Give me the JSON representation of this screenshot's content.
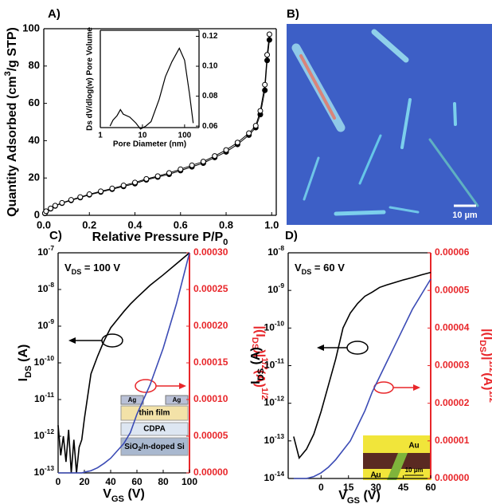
{
  "chart_data": [
    {
      "type": "line",
      "panel_label": "A)",
      "xlabel": [
        {
          "text": "Relative Pressure P/P"
        },
        {
          "sub": "0"
        }
      ],
      "ylabel": [
        {
          "text": "Quantity Adsorbed (cm"
        },
        {
          "sup": "3"
        },
        {
          "text": "/g STP)"
        }
      ],
      "x": [
        0.005,
        0.01,
        0.03,
        0.05,
        0.08,
        0.12,
        0.16,
        0.2,
        0.25,
        0.3,
        0.35,
        0.4,
        0.45,
        0.5,
        0.55,
        0.6,
        0.65,
        0.7,
        0.75,
        0.8,
        0.85,
        0.9,
        0.93,
        0.95,
        0.97,
        0.98,
        0.99
      ],
      "series": [
        {
          "color": "#000000",
          "marker": "filled",
          "values": [
            1,
            2,
            3.5,
            5,
            6.5,
            8,
            9.5,
            11,
            12.5,
            14,
            15.5,
            17,
            19,
            20.5,
            22,
            24,
            26,
            28,
            31,
            34,
            38,
            43,
            47,
            54,
            67,
            83,
            94
          ]
        },
        {
          "color": "#000000",
          "marker": "open",
          "values": [
            1.2,
            2.2,
            3.7,
            5.2,
            6.7,
            8.3,
            9.8,
            11.3,
            12.9,
            14.4,
            16,
            17.6,
            19.5,
            21,
            22.7,
            24.7,
            26.8,
            28.8,
            31.8,
            35,
            39,
            44,
            48,
            56,
            70,
            86,
            97
          ]
        }
      ],
      "xlim": [
        0,
        1.02
      ],
      "ylim": [
        0,
        100
      ],
      "xticks": [
        {
          "value": 0,
          "label": "0.0"
        },
        0.2,
        0.4,
        0.6,
        0.8,
        {
          "value": 1,
          "label": "1.0"
        }
      ],
      "yticks": [
        0,
        20,
        40,
        60,
        80,
        100
      ]
    },
    {
      "type": "line",
      "xscale": "log",
      "xlabel": "Pore Diameter (nm)",
      "ylabel": "Ds dV/dlog(w) Pore Volume",
      "x": [
        1.7,
        2,
        2.5,
        3,
        3.5,
        5,
        7,
        9,
        12,
        16,
        25,
        35,
        50,
        75,
        100,
        130,
        160
      ],
      "series": [
        {
          "color": "#000000",
          "values": [
            0.06,
            0.064,
            0.067,
            0.071,
            0.068,
            0.066,
            0.062,
            0.058,
            0.06,
            0.063,
            0.078,
            0.093,
            0.103,
            0.112,
            0.104,
            0.082,
            0.062
          ]
        }
      ],
      "xlim": [
        1,
        220
      ],
      "ylim": [
        0.059,
        0.124
      ],
      "xticks": [
        1,
        10,
        100
      ],
      "yticks": [
        0.06,
        0.08,
        {
          "value": 0.1,
          "label": "0.10"
        },
        0.12
      ]
    },
    {
      "type": "image",
      "panel_label": "B)",
      "scale_bar": "10 µm"
    },
    {
      "type": "line",
      "panel_label": "C)",
      "yscale": "log",
      "annotation": [
        {
          "text": "V"
        },
        {
          "sub": "DS"
        },
        {
          "text": " = 100 V"
        }
      ],
      "xlabel": [
        {
          "text": "V"
        },
        {
          "sub": "GS"
        },
        {
          "text": " (V)"
        }
      ],
      "ylabel": [
        {
          "text": "I"
        },
        {
          "sub": "DS"
        },
        {
          "text": " (A)"
        }
      ],
      "y2label": [
        {
          "text": "|(I"
        },
        {
          "sub": "DS"
        },
        {
          "text": ")|"
        },
        {
          "sup": "1/2"
        },
        {
          "text": "(A)"
        },
        {
          "sup": "1/2"
        }
      ],
      "x": [
        0,
        2,
        4,
        6,
        8,
        10,
        12,
        14,
        16,
        18,
        20,
        25,
        30,
        35,
        40,
        45,
        50,
        55,
        60,
        70,
        80,
        90,
        100
      ],
      "series": [
        {
          "color": "#000000",
          "values": [
            2e-12,
            3e-13,
            1e-12,
            2e-13,
            1.5e-12,
            1e-13,
            8e-13,
            1e-13,
            5e-13,
            8e-13,
            3e-12,
            5e-11,
            1.5e-10,
            4e-10,
            9e-10,
            1.5e-09,
            2.5e-09,
            4e-09,
            6e-09,
            1.3e-08,
            2.5e-08,
            5e-08,
            1e-07
          ]
        },
        {
          "color": "#3b4bb5",
          "axis": "y2",
          "values": [
            0,
            0,
            0,
            0,
            0,
            0,
            0,
            0,
            0,
            0,
            1e-06,
            3e-06,
            7e-06,
            1.3e-05,
            2e-05,
            3e-05,
            4e-05,
            5.5e-05,
            8e-05,
            0.00012,
            0.00017,
            0.00023,
            0.0003
          ]
        }
      ],
      "inset_labels": {
        "ag_left": "Ag",
        "ag_right": "Ag",
        "film": "thin film",
        "cdpa": "CDPA",
        "substrate": [
          {
            "text": "SiO"
          },
          {
            "sub": "2"
          },
          {
            "text": "/n-doped Si"
          }
        ]
      },
      "xlim": [
        0,
        100
      ],
      "ylim": [
        1e-13,
        1e-07
      ],
      "y2lim": [
        0,
        0.0003
      ],
      "y2color": "#e8262a",
      "xticks": [
        0,
        20,
        40,
        60,
        80,
        100
      ],
      "yticks": [
        {
          "value": 1e-13,
          "label": [
            {
              "text": "10"
            },
            {
              "sup": "-13"
            }
          ]
        },
        {
          "value": 1e-12,
          "label": [
            {
              "text": "10"
            },
            {
              "sup": "-12"
            }
          ]
        },
        {
          "value": 1e-11,
          "label": [
            {
              "text": "10"
            },
            {
              "sup": "-11"
            }
          ]
        },
        {
          "value": 1e-10,
          "label": [
            {
              "text": "10"
            },
            {
              "sup": "-10"
            }
          ]
        },
        {
          "value": 1e-09,
          "label": [
            {
              "text": "10"
            },
            {
              "sup": "-9"
            }
          ]
        },
        {
          "value": 1e-08,
          "label": [
            {
              "text": "10"
            },
            {
              "sup": "-8"
            }
          ]
        },
        {
          "value": 1e-07,
          "label": [
            {
              "text": "10"
            },
            {
              "sup": "-7"
            }
          ]
        }
      ],
      "y2ticks": [
        {
          "value": 0,
          "label": "0.00000"
        },
        5e-05,
        {
          "value": 0.0001,
          "label": "0.00010"
        },
        0.00015,
        {
          "value": 0.0002,
          "label": "0.00020"
        },
        0.00025,
        {
          "value": 0.0003,
          "label": "0.00030"
        }
      ]
    },
    {
      "type": "line",
      "panel_label": "D)",
      "yscale": "log",
      "annotation": [
        {
          "text": "V"
        },
        {
          "sub": "DS"
        },
        {
          "text": " = 60 V"
        }
      ],
      "xlabel": [
        {
          "text": "V"
        },
        {
          "sub": "GS"
        },
        {
          "text": " (V)"
        }
      ],
      "ylabel": [
        {
          "text": "I"
        },
        {
          "sub": "DS"
        },
        {
          "text": " (A)"
        }
      ],
      "y2label": [
        {
          "text": "|(I"
        },
        {
          "sub": "DS"
        },
        {
          "text": ")|"
        },
        {
          "sup": "1/2"
        },
        {
          "text": "(A)"
        },
        {
          "sup": "1/2"
        }
      ],
      "x": [
        -15,
        -12,
        -8,
        -4,
        0,
        4,
        8,
        12,
        16,
        20,
        24,
        28,
        32,
        36,
        40,
        45,
        50,
        55,
        60
      ],
      "series": [
        {
          "color": "#000000",
          "values": [
            1.3e-13,
            3.5e-14,
            6e-14,
            1.5e-13,
            6e-13,
            3e-12,
            1.5e-11,
            1e-10,
            2.5e-10,
            4.5e-10,
            7e-10,
            9e-10,
            1.2e-09,
            1.4e-09,
            1.6e-09,
            1.9e-09,
            2.2e-09,
            2.6e-09,
            3e-09
          ]
        },
        {
          "color": "#3b4bb5",
          "axis": "y2",
          "values": [
            0,
            0,
            0,
            5e-07,
            1.5e-06,
            3e-06,
            5e-06,
            7.5e-06,
            1e-05,
            1.4e-05,
            1.8e-05,
            2.3e-05,
            2.7e-05,
            3.1e-05,
            3.5e-05,
            4e-05,
            4.5e-05,
            4.9e-05,
            5.3e-05
          ]
        }
      ],
      "inset_labels": {
        "au_top": "Au",
        "au_bottom": "Au",
        "scale_bar": "10 µm"
      },
      "xlim": [
        -18,
        60
      ],
      "ylim": [
        1e-14,
        1e-08
      ],
      "y2lim": [
        0,
        6e-05
      ],
      "y2color": "#e8262a",
      "xticks": [
        0,
        15,
        30,
        45,
        60
      ],
      "yticks": [
        {
          "value": 1e-14,
          "label": [
            {
              "text": "10"
            },
            {
              "sup": "-14"
            }
          ]
        },
        {
          "value": 1e-13,
          "label": [
            {
              "text": "10"
            },
            {
              "sup": "-13"
            }
          ]
        },
        {
          "value": 1e-12,
          "label": [
            {
              "text": "10"
            },
            {
              "sup": "-12"
            }
          ]
        },
        {
          "value": 1e-11,
          "label": [
            {
              "text": "10"
            },
            {
              "sup": "-11"
            }
          ]
        },
        {
          "value": 1e-10,
          "label": [
            {
              "text": "10"
            },
            {
              "sup": "-10"
            }
          ]
        },
        {
          "value": 1e-09,
          "label": [
            {
              "text": "10"
            },
            {
              "sup": "-9"
            }
          ]
        },
        {
          "value": 1e-08,
          "label": [
            {
              "text": "10"
            },
            {
              "sup": "-8"
            }
          ]
        }
      ],
      "y2ticks": [
        {
          "value": 0,
          "label": "0.00000"
        },
        1e-05,
        2e-05,
        3e-05,
        4e-05,
        5e-05,
        6e-05
      ]
    }
  ]
}
